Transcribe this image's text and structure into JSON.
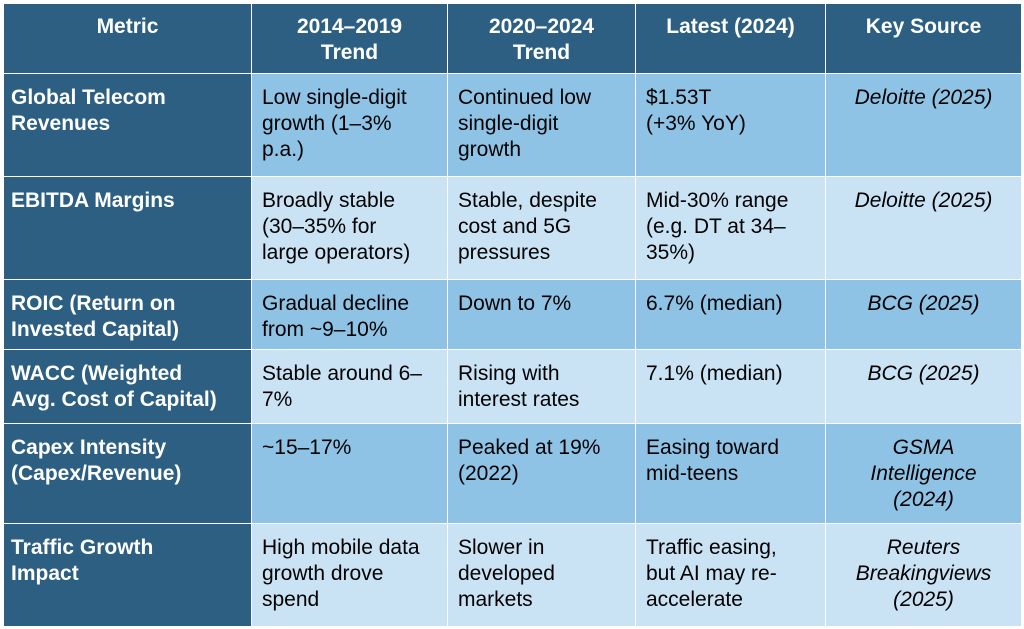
{
  "table": {
    "headers": [
      "Metric",
      "2014–2019\nTrend",
      "2020–2024\nTrend",
      "Latest (2024)",
      "Key Source"
    ],
    "rows": [
      {
        "metric": "Global Telecom\nRevenues",
        "trend_2014_2019": "Low single-digit\ngrowth (1–3%\np.a.)",
        "trend_2020_2024": "Continued low\nsingle-digit\ngrowth",
        "latest": "$1.53T\n (+3% YoY)",
        "source": "Deloitte (2025)"
      },
      {
        "metric": "EBITDA Margins",
        "trend_2014_2019": "Broadly stable\n(30–35% for\nlarge operators)",
        "trend_2020_2024": "Stable, despite\ncost and 5G\npressures",
        "latest": "Mid-30% range\n(e.g. DT at 34–\n35%)",
        "source": "Deloitte (2025)"
      },
      {
        "metric": "ROIC (Return on\nInvested Capital)",
        "trend_2014_2019": "Gradual decline\nfrom ~9–10%",
        "trend_2020_2024": "Down to 7%",
        "latest": "6.7% (median)",
        "source": "BCG (2025)"
      },
      {
        "metric": "WACC (Weighted\nAvg. Cost of Capital)",
        "trend_2014_2019": "Stable around 6–\n7%",
        "trend_2020_2024": "Rising with\ninterest rates",
        "latest": "7.1% (median)",
        "source": "BCG (2025)"
      },
      {
        "metric": "Capex Intensity\n(Capex/Revenue)",
        "trend_2014_2019": "~15–17%",
        "trend_2020_2024": "Peaked at 19%\n(2022)",
        "latest": "Easing toward\nmid-teens",
        "source": "GSMA\nIntelligence\n(2024)"
      },
      {
        "metric": "Traffic Growth\nImpact",
        "trend_2014_2019": "High mobile data\ngrowth drove\nspend",
        "trend_2020_2024": "Slower in\ndeveloped\nmarkets",
        "latest": "Traffic easing,\nbut AI may re-\naccelerate",
        "source": "Reuters\nBreakingviews\n(2025)"
      }
    ]
  }
}
